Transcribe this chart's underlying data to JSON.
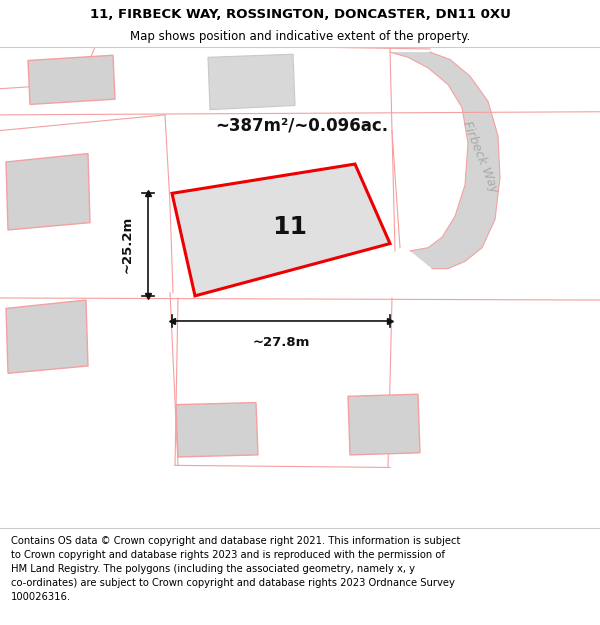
{
  "title_line1": "11, FIRBECK WAY, ROSSINGTON, DONCASTER, DN11 0XU",
  "title_line2": "Map shows position and indicative extent of the property.",
  "footer": "Contains OS data © Crown copyright and database right 2021. This information is subject\nto Crown copyright and database rights 2023 and is reproduced with the permission of\nHM Land Registry. The polygons (including the associated geometry, namely x, y\nco-ordinates) are subject to Crown copyright and database rights 2023 Ordnance Survey\n100026316.",
  "area_label": "~387m²/~0.096ac.",
  "plot_number": "11",
  "dim_width": "~27.8m",
  "dim_height": "~25.2m",
  "road_label": "Firbeck Way",
  "neighbor_stroke": "#f5a0a0",
  "building_fill": "#d2d2d2",
  "road_fill": "#d8d8d8",
  "plot_fill": "#e0e0e0",
  "plot_stroke": "#ee0000",
  "title_fontsize": 9.5,
  "subtitle_fontsize": 8.5,
  "footer_fontsize": 7.2
}
